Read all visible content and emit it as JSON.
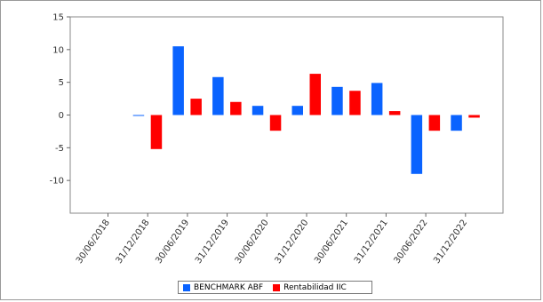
{
  "chart_data": {
    "type": "bar",
    "categories": [
      "30/06/2018",
      "31/12/2018",
      "30/06/2019",
      "31/12/2019",
      "30/06/2020",
      "31/12/2020",
      "30/06/2021",
      "31/12/2021",
      "30/06/2022",
      "31/12/2022"
    ],
    "series": [
      {
        "name": "BENCHMARK ABF",
        "color": "#0a63ff",
        "values": [
          null,
          -0.1,
          10.5,
          5.8,
          1.4,
          1.4,
          4.3,
          4.9,
          -9.0,
          -2.4
        ]
      },
      {
        "name": "Rentabilidad IIC",
        "color": "#ff0000",
        "values": [
          null,
          -5.2,
          2.5,
          2.0,
          -2.4,
          6.3,
          3.7,
          0.6,
          -2.4,
          -0.4
        ]
      }
    ],
    "yticks": [
      15,
      10,
      5,
      0,
      -5,
      -10
    ],
    "ylim": [
      -15,
      15
    ],
    "grid": false,
    "legend_position": "bottom"
  }
}
